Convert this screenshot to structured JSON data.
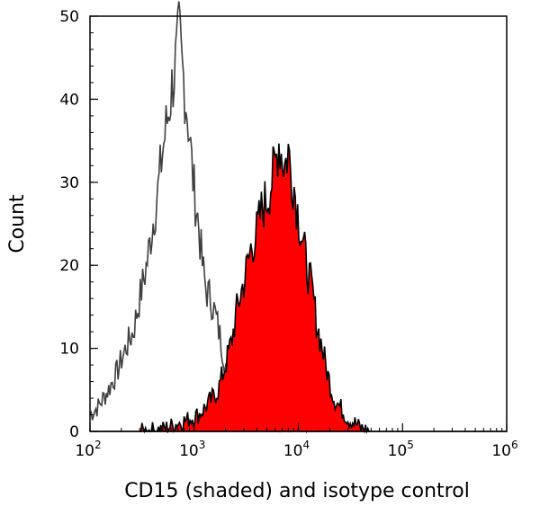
{
  "chart_data": {
    "type": "area",
    "xlabel": "CD15 (shaded) and isotype control",
    "ylabel": "Count",
    "xscale": "log",
    "xlim": [
      100,
      1000000
    ],
    "ylim": [
      0,
      50
    ],
    "x_ticks": [
      {
        "base": "10",
        "exp": "2"
      },
      {
        "base": "10",
        "exp": "3"
      },
      {
        "base": "10",
        "exp": "4"
      },
      {
        "base": "10",
        "exp": "5"
      },
      {
        "base": "10",
        "exp": "6"
      }
    ],
    "y_ticks": [
      "0",
      "10",
      "20",
      "30",
      "40",
      "50"
    ],
    "grid": false,
    "legend": "none",
    "series": [
      {
        "style": "outline",
        "color": "#404040",
        "x": [
          100,
          120,
          150,
          180,
          220,
          260,
          300,
          350,
          400,
          450,
          500,
          560,
          620,
          680,
          720,
          760,
          800,
          850,
          900,
          950,
          1000,
          1100,
          1200,
          1300,
          1450,
          1600,
          1800,
          2000,
          2300,
          2600,
          3000,
          3500,
          4000,
          5000,
          6000,
          8000,
          10000,
          15000,
          20000
        ],
        "y": [
          2,
          3,
          5,
          7,
          10,
          12,
          16,
          20,
          25,
          29,
          34,
          38,
          42,
          45,
          48,
          44,
          42,
          39,
          36,
          32,
          29,
          25,
          20,
          17,
          16,
          14,
          11,
          8,
          5,
          3,
          2,
          1.5,
          1,
          0.5,
          0.3,
          0.2,
          0.1,
          0,
          0
        ]
      },
      {
        "style": "shaded",
        "color": "#ff0000",
        "x": [
          300,
          500,
          700,
          900,
          1100,
          1300,
          1500,
          1700,
          2000,
          2300,
          2600,
          3000,
          3500,
          4000,
          4500,
          5000,
          5500,
          6000,
          6500,
          7000,
          7500,
          8000,
          8500,
          9000,
          10000,
          11000,
          12000,
          13000,
          14000,
          15000,
          17000,
          19000,
          22000,
          25000,
          30000,
          35000,
          40000,
          50000
        ],
        "y": [
          0,
          0.3,
          1,
          1.5,
          2,
          3,
          4,
          5,
          8,
          11,
          15,
          18,
          22,
          24,
          27,
          28,
          30,
          32,
          35,
          33,
          32,
          34,
          31,
          30,
          26,
          23,
          20,
          18,
          16,
          13,
          10,
          7,
          4,
          3,
          1.5,
          1,
          0.4,
          0
        ]
      }
    ]
  }
}
